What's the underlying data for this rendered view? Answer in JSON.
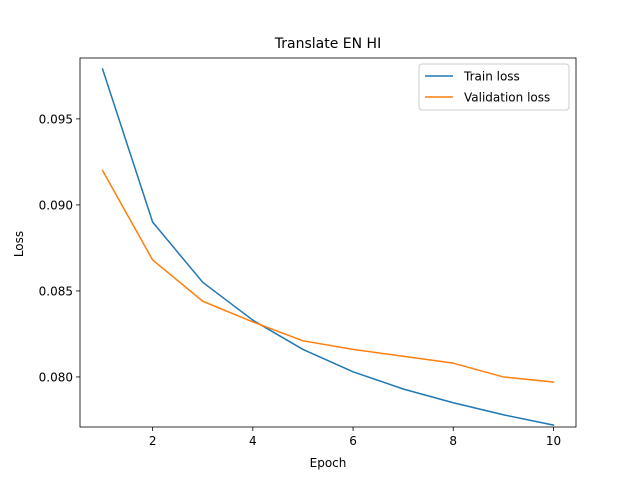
{
  "chart_data": {
    "type": "line",
    "title": "Translate EN HI",
    "xlabel": "Epoch",
    "ylabel": "Loss",
    "xlim": [
      0.55,
      10.45
    ],
    "ylim": [
      0.07709,
      0.09854
    ],
    "xticks": [
      2,
      4,
      6,
      8,
      10
    ],
    "xtick_labels": [
      "2",
      "4",
      "6",
      "8",
      "10"
    ],
    "yticks": [
      0.08,
      0.085,
      0.09,
      0.095
    ],
    "ytick_labels": [
      "0.080",
      "0.085",
      "0.090",
      "0.095"
    ],
    "grid": false,
    "legend_position": "top-right",
    "x": [
      1,
      2,
      3,
      4,
      5,
      6,
      7,
      8,
      9,
      10
    ],
    "series": [
      {
        "name": "Train loss",
        "color": "#1f77b4",
        "values": [
          0.0979,
          0.089,
          0.0855,
          0.0833,
          0.0816,
          0.0803,
          0.0793,
          0.0785,
          0.0778,
          0.0772
        ]
      },
      {
        "name": "Validation loss",
        "color": "#ff7f0e",
        "values": [
          0.092,
          0.0868,
          0.0844,
          0.0832,
          0.0821,
          0.0816,
          0.0812,
          0.0808,
          0.08,
          0.0797
        ]
      }
    ]
  }
}
